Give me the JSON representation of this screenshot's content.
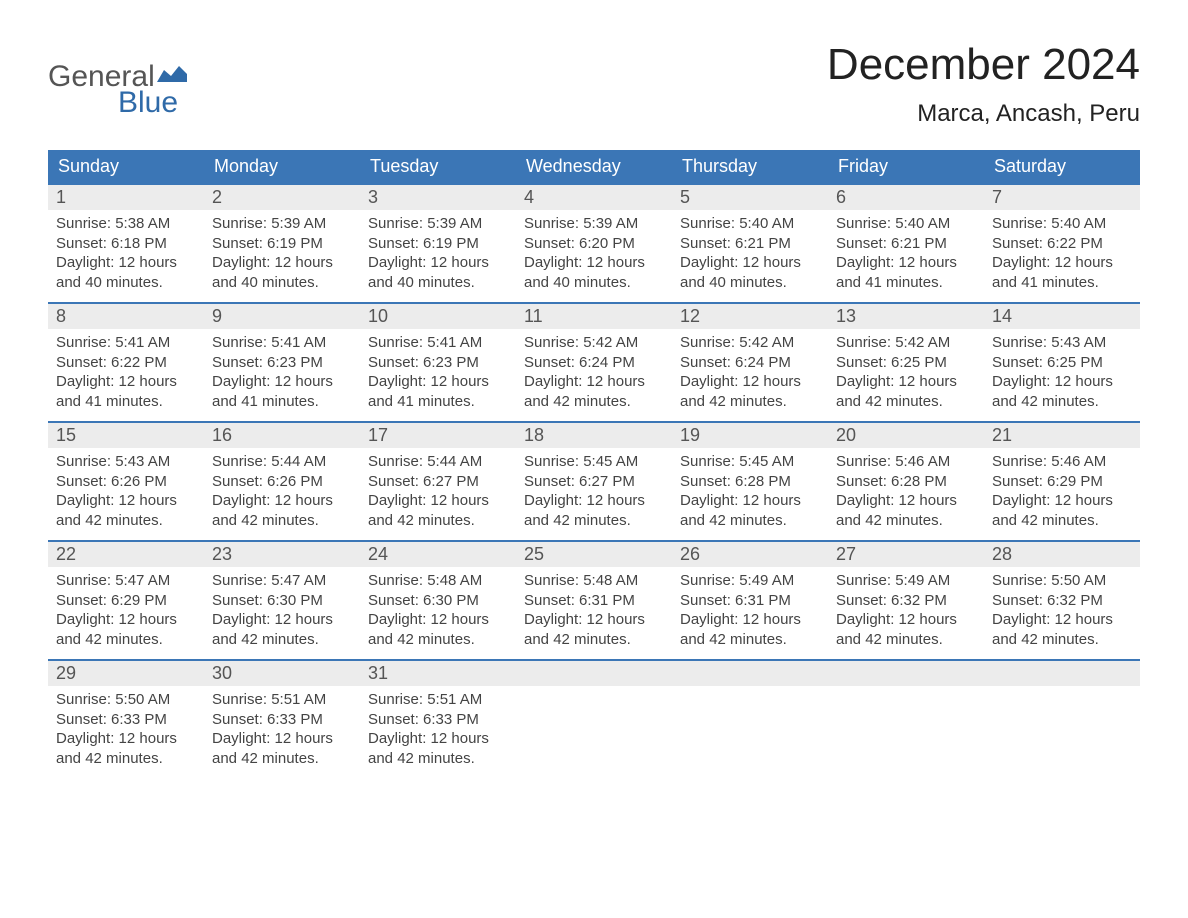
{
  "logo": {
    "line1": "General",
    "line2": "Blue",
    "flag_color": "#2f6aa8"
  },
  "title": "December 2024",
  "location": "Marca, Ancash, Peru",
  "colors": {
    "header_bg": "#3b76b6",
    "header_text": "#ffffff",
    "daynum_bg": "#ececec",
    "row_border": "#3b76b6",
    "text": "#444444"
  },
  "dayHeaders": [
    "Sunday",
    "Monday",
    "Tuesday",
    "Wednesday",
    "Thursday",
    "Friday",
    "Saturday"
  ],
  "weeks": [
    [
      {
        "num": "1",
        "sunrise": "5:38 AM",
        "sunset": "6:18 PM",
        "daylight": "12 hours and 40 minutes."
      },
      {
        "num": "2",
        "sunrise": "5:39 AM",
        "sunset": "6:19 PM",
        "daylight": "12 hours and 40 minutes."
      },
      {
        "num": "3",
        "sunrise": "5:39 AM",
        "sunset": "6:19 PM",
        "daylight": "12 hours and 40 minutes."
      },
      {
        "num": "4",
        "sunrise": "5:39 AM",
        "sunset": "6:20 PM",
        "daylight": "12 hours and 40 minutes."
      },
      {
        "num": "5",
        "sunrise": "5:40 AM",
        "sunset": "6:21 PM",
        "daylight": "12 hours and 40 minutes."
      },
      {
        "num": "6",
        "sunrise": "5:40 AM",
        "sunset": "6:21 PM",
        "daylight": "12 hours and 41 minutes."
      },
      {
        "num": "7",
        "sunrise": "5:40 AM",
        "sunset": "6:22 PM",
        "daylight": "12 hours and 41 minutes."
      }
    ],
    [
      {
        "num": "8",
        "sunrise": "5:41 AM",
        "sunset": "6:22 PM",
        "daylight": "12 hours and 41 minutes."
      },
      {
        "num": "9",
        "sunrise": "5:41 AM",
        "sunset": "6:23 PM",
        "daylight": "12 hours and 41 minutes."
      },
      {
        "num": "10",
        "sunrise": "5:41 AM",
        "sunset": "6:23 PM",
        "daylight": "12 hours and 41 minutes."
      },
      {
        "num": "11",
        "sunrise": "5:42 AM",
        "sunset": "6:24 PM",
        "daylight": "12 hours and 42 minutes."
      },
      {
        "num": "12",
        "sunrise": "5:42 AM",
        "sunset": "6:24 PM",
        "daylight": "12 hours and 42 minutes."
      },
      {
        "num": "13",
        "sunrise": "5:42 AM",
        "sunset": "6:25 PM",
        "daylight": "12 hours and 42 minutes."
      },
      {
        "num": "14",
        "sunrise": "5:43 AM",
        "sunset": "6:25 PM",
        "daylight": "12 hours and 42 minutes."
      }
    ],
    [
      {
        "num": "15",
        "sunrise": "5:43 AM",
        "sunset": "6:26 PM",
        "daylight": "12 hours and 42 minutes."
      },
      {
        "num": "16",
        "sunrise": "5:44 AM",
        "sunset": "6:26 PM",
        "daylight": "12 hours and 42 minutes."
      },
      {
        "num": "17",
        "sunrise": "5:44 AM",
        "sunset": "6:27 PM",
        "daylight": "12 hours and 42 minutes."
      },
      {
        "num": "18",
        "sunrise": "5:45 AM",
        "sunset": "6:27 PM",
        "daylight": "12 hours and 42 minutes."
      },
      {
        "num": "19",
        "sunrise": "5:45 AM",
        "sunset": "6:28 PM",
        "daylight": "12 hours and 42 minutes."
      },
      {
        "num": "20",
        "sunrise": "5:46 AM",
        "sunset": "6:28 PM",
        "daylight": "12 hours and 42 minutes."
      },
      {
        "num": "21",
        "sunrise": "5:46 AM",
        "sunset": "6:29 PM",
        "daylight": "12 hours and 42 minutes."
      }
    ],
    [
      {
        "num": "22",
        "sunrise": "5:47 AM",
        "sunset": "6:29 PM",
        "daylight": "12 hours and 42 minutes."
      },
      {
        "num": "23",
        "sunrise": "5:47 AM",
        "sunset": "6:30 PM",
        "daylight": "12 hours and 42 minutes."
      },
      {
        "num": "24",
        "sunrise": "5:48 AM",
        "sunset": "6:30 PM",
        "daylight": "12 hours and 42 minutes."
      },
      {
        "num": "25",
        "sunrise": "5:48 AM",
        "sunset": "6:31 PM",
        "daylight": "12 hours and 42 minutes."
      },
      {
        "num": "26",
        "sunrise": "5:49 AM",
        "sunset": "6:31 PM",
        "daylight": "12 hours and 42 minutes."
      },
      {
        "num": "27",
        "sunrise": "5:49 AM",
        "sunset": "6:32 PM",
        "daylight": "12 hours and 42 minutes."
      },
      {
        "num": "28",
        "sunrise": "5:50 AM",
        "sunset": "6:32 PM",
        "daylight": "12 hours and 42 minutes."
      }
    ],
    [
      {
        "num": "29",
        "sunrise": "5:50 AM",
        "sunset": "6:33 PM",
        "daylight": "12 hours and 42 minutes."
      },
      {
        "num": "30",
        "sunrise": "5:51 AM",
        "sunset": "6:33 PM",
        "daylight": "12 hours and 42 minutes."
      },
      {
        "num": "31",
        "sunrise": "5:51 AM",
        "sunset": "6:33 PM",
        "daylight": "12 hours and 42 minutes."
      },
      null,
      null,
      null,
      null
    ]
  ],
  "labels": {
    "sunrise": "Sunrise: ",
    "sunset": "Sunset: ",
    "daylight": "Daylight: "
  }
}
